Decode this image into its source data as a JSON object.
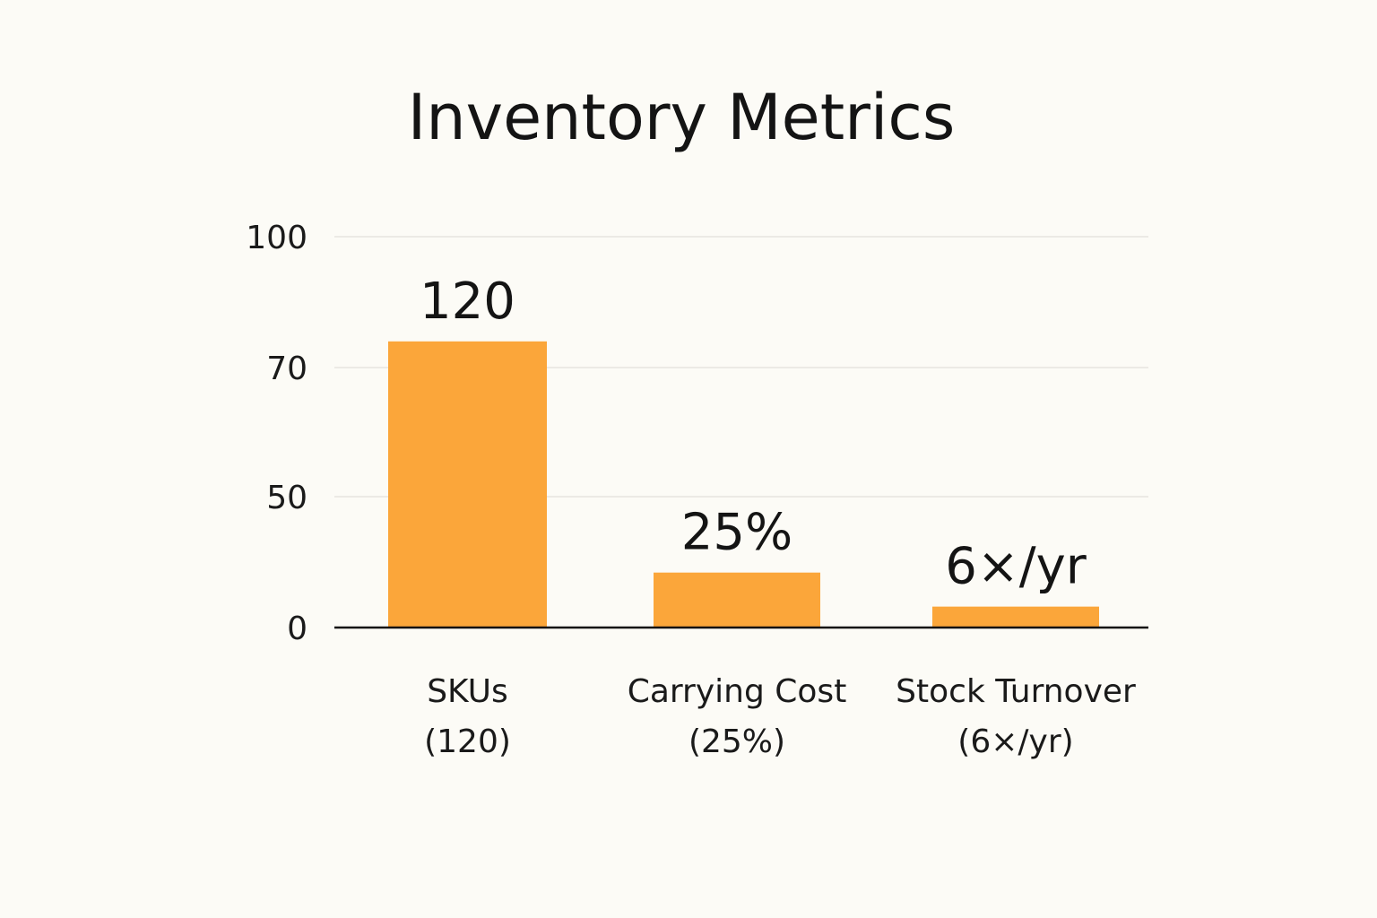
{
  "chart_data": {
    "type": "bar",
    "title": "Inventory Metrics",
    "xlabel": "",
    "ylabel": "",
    "y_ticks": [
      "0",
      "50",
      "70",
      "100"
    ],
    "grid": true,
    "legend": "none",
    "bar_color": "#fba63a",
    "categories": [
      {
        "line1": "SKUs",
        "line2": "(120)"
      },
      {
        "line1": "Carrying Cost",
        "line2": "(25%)"
      },
      {
        "line1": "Stock Turnover",
        "line2": "(6×/yr)"
      }
    ],
    "values": [
      120,
      25,
      6
    ],
    "data_labels": [
      "120",
      "25%",
      "6×/yr"
    ],
    "bar_heights_on_axis": [
      76,
      21,
      8
    ]
  }
}
